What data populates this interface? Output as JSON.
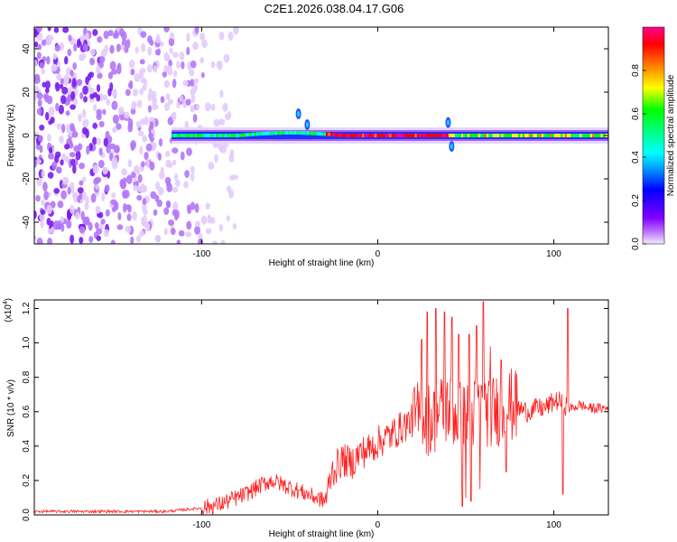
{
  "title": "C2E1.2026.038.04.17.G06",
  "chart_data": [
    {
      "type": "heatmap",
      "xlabel": "Height of straight line (km)",
      "ylabel": "Frequency (Hz)",
      "xlim": [
        -195,
        131
      ],
      "ylim": [
        -50,
        50
      ],
      "xticks": [
        -100,
        0,
        100
      ],
      "xtick_labels": [
        "-100",
        "0",
        "100"
      ],
      "yticks": [
        -40,
        -20,
        0,
        20,
        40
      ],
      "ytick_labels": [
        "-40",
        "-20",
        "0",
        "20",
        "40"
      ],
      "colorbar": {
        "label": "Normalized spectral amplitude",
        "range": [
          0,
          1
        ],
        "ticks": [
          0.0,
          0.2,
          0.4,
          0.6,
          0.8
        ],
        "tick_labels": [
          "0.0",
          "0.2",
          "0.4",
          "0.6",
          "0.8"
        ],
        "colormap": [
          "#f0e0ff",
          "#c080ff",
          "#8000ff",
          "#0000ff",
          "#00a0ff",
          "#00ffff",
          "#00ff80",
          "#00ff00",
          "#ffff00",
          "#ff8000",
          "#ff0000",
          "#ff0090"
        ]
      },
      "features": {
        "noise_region_x": [
          -195,
          -80
        ],
        "signal_band_x": [
          -117,
          131
        ],
        "signal_center_hz": 0
      },
      "grid": false
    },
    {
      "type": "line",
      "xlabel": "Height of straight line (km)",
      "ylabel": "SNR (10 * v/v)",
      "scale_label": "(x10",
      "scale_exponent": "4",
      "xlim": [
        -195,
        131
      ],
      "ylim": [
        0,
        1.25
      ],
      "xticks": [
        -100,
        0,
        100
      ],
      "xtick_labels": [
        "-100",
        "0",
        "100"
      ],
      "yticks": [
        0.0,
        0.2,
        0.4,
        0.6,
        0.8,
        1.0,
        1.2
      ],
      "ytick_labels": [
        "0.0",
        "0.2",
        "0.4",
        "0.6",
        "0.8",
        "1.0",
        "1.2"
      ],
      "series_color": "#ff2020",
      "grid": false,
      "x": [
        -195,
        -180,
        -160,
        -140,
        -120,
        -110,
        -100,
        -90,
        -80,
        -75,
        -70,
        -65,
        -60,
        -55,
        -50,
        -45,
        -40,
        -35,
        -30,
        -28,
        -26,
        -20,
        -15,
        -10,
        -5,
        0,
        5,
        10,
        15,
        20,
        25,
        30,
        35,
        40,
        45,
        50,
        55,
        60,
        65,
        70,
        75,
        80,
        85,
        90,
        95,
        100,
        105,
        108,
        110,
        115,
        120,
        125,
        131
      ],
      "y": [
        0.02,
        0.02,
        0.02,
        0.02,
        0.02,
        0.03,
        0.04,
        0.06,
        0.1,
        0.12,
        0.15,
        0.18,
        0.2,
        0.18,
        0.16,
        0.14,
        0.12,
        0.1,
        0.08,
        0.15,
        0.25,
        0.32,
        0.3,
        0.36,
        0.38,
        0.42,
        0.45,
        0.48,
        0.52,
        0.55,
        0.58,
        0.55,
        0.6,
        0.62,
        0.58,
        0.55,
        0.6,
        0.62,
        0.6,
        0.62,
        0.64,
        0.62,
        0.6,
        0.62,
        0.62,
        0.66,
        0.66,
        0.62,
        0.62,
        0.64,
        0.62,
        0.62,
        0.62
      ],
      "peaks": [
        {
          "x": 25,
          "y": 1.02
        },
        {
          "x": 28,
          "y": 1.18
        },
        {
          "x": 33,
          "y": 1.2
        },
        {
          "x": 38,
          "y": 1.18
        },
        {
          "x": 42,
          "y": 1.15
        },
        {
          "x": 46,
          "y": 1.05
        },
        {
          "x": 52,
          "y": 1.05
        },
        {
          "x": 56,
          "y": 1.1
        },
        {
          "x": 60,
          "y": 1.24
        },
        {
          "x": 64,
          "y": 0.98
        },
        {
          "x": 70,
          "y": 0.9
        },
        {
          "x": 78,
          "y": 0.8
        },
        {
          "x": 108,
          "y": 1.2
        }
      ],
      "dips": [
        {
          "x": 48,
          "y": 0.05
        },
        {
          "x": 50,
          "y": 0.1
        },
        {
          "x": 53,
          "y": 0.08
        },
        {
          "x": 58,
          "y": 0.15
        },
        {
          "x": 73,
          "y": 0.25
        },
        {
          "x": 105,
          "y": 0.12
        }
      ]
    }
  ]
}
